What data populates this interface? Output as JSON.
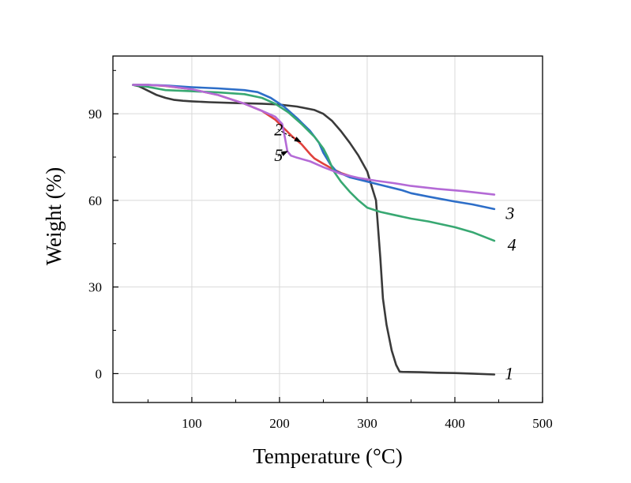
{
  "chart_data": {
    "type": "line",
    "title": "",
    "xlabel": "Temperature (°C)",
    "ylabel": "Weight (%)",
    "xlim": [
      10,
      500
    ],
    "ylim": [
      -10,
      110
    ],
    "x_ticks": [
      100,
      200,
      300,
      400,
      500
    ],
    "y_ticks": [
      0,
      30,
      60,
      90
    ],
    "x_tick_labels": [
      "100",
      "200",
      "300",
      "400",
      "500"
    ],
    "y_tick_labels": [
      "0",
      "30",
      "60",
      "90"
    ],
    "grid": true,
    "legend": "none (curves numbered inline)",
    "series": [
      {
        "name": "1",
        "color": "#3a3a3a",
        "x": [
          33,
          40,
          50,
          60,
          70,
          80,
          90,
          100,
          120,
          150,
          180,
          200,
          220,
          240,
          250,
          260,
          270,
          280,
          290,
          300,
          305,
          310,
          312,
          315,
          318,
          322,
          328,
          333,
          337,
          340,
          360,
          380,
          400,
          420,
          445
        ],
        "y": [
          100,
          99.5,
          98,
          96.5,
          95.5,
          94.8,
          94.5,
          94.3,
          94,
          93.7,
          93.5,
          93.2,
          92.5,
          91.3,
          90,
          87.5,
          84,
          80,
          75.5,
          70,
          65,
          60,
          52,
          40,
          26,
          17,
          8,
          3,
          0.7,
          0.6,
          0.5,
          0.3,
          0.2,
          0,
          -0.3
        ]
      },
      {
        "name": "2",
        "color": "#e0413c",
        "x": [
          33,
          50,
          70,
          100,
          130,
          160,
          180,
          195,
          205,
          215,
          225,
          235,
          240,
          250,
          260,
          270,
          290,
          300
        ],
        "y": [
          100,
          100,
          99.6,
          98.5,
          96.5,
          93.5,
          91,
          88,
          85,
          82,
          79.5,
          76,
          74.5,
          72.7,
          71,
          69.5,
          67.5,
          67
        ]
      },
      {
        "name": "3",
        "color": "#2d6ec8",
        "x": [
          33,
          50,
          70,
          100,
          130,
          160,
          175,
          190,
          205,
          220,
          235,
          245,
          250,
          258,
          265,
          280,
          300,
          320,
          340,
          350,
          370,
          400,
          420,
          445
        ],
        "y": [
          100,
          100,
          99.8,
          99.2,
          98.8,
          98.2,
          97.5,
          95.5,
          92.5,
          88.5,
          84,
          80,
          76.5,
          72.5,
          70,
          68,
          66.5,
          65,
          63.5,
          62.5,
          61.3,
          59.6,
          58.6,
          57
        ]
      },
      {
        "name": "4",
        "color": "#38a872",
        "x": [
          33,
          50,
          70,
          100,
          130,
          160,
          180,
          195,
          210,
          225,
          240,
          250,
          255,
          262,
          270,
          280,
          290,
          300,
          315,
          330,
          350,
          370,
          400,
          420,
          445
        ],
        "y": [
          100,
          99.3,
          98.2,
          97.8,
          97.4,
          96.8,
          95.5,
          93.5,
          90.5,
          86.5,
          82,
          78,
          75,
          70,
          66.5,
          63,
          60,
          57.5,
          56,
          55,
          53.7,
          52.7,
          50.7,
          49,
          46
        ]
      },
      {
        "name": "5",
        "color": "#b46ad6",
        "x": [
          33,
          50,
          70,
          100,
          130,
          160,
          180,
          195,
          203,
          206,
          209,
          213,
          220,
          235,
          250,
          270,
          290,
          310,
          330,
          350,
          380,
          410,
          445
        ],
        "y": [
          100,
          100,
          99.7,
          98.5,
          96.5,
          93.5,
          91,
          89,
          86.5,
          82,
          77,
          75.5,
          74.8,
          73.5,
          71.5,
          69.2,
          67.8,
          66.8,
          66,
          65,
          64,
          63.2,
          62
        ]
      }
    ],
    "annotations": [
      {
        "text": "1",
        "x": 457,
        "y": 0
      },
      {
        "text": "2",
        "x": 194,
        "y": 84.5
      },
      {
        "text": "3",
        "x": 458,
        "y": 55.5
      },
      {
        "text": "4",
        "x": 460,
        "y": 44.5
      },
      {
        "text": "5",
        "x": 194,
        "y": 75.5
      }
    ]
  }
}
